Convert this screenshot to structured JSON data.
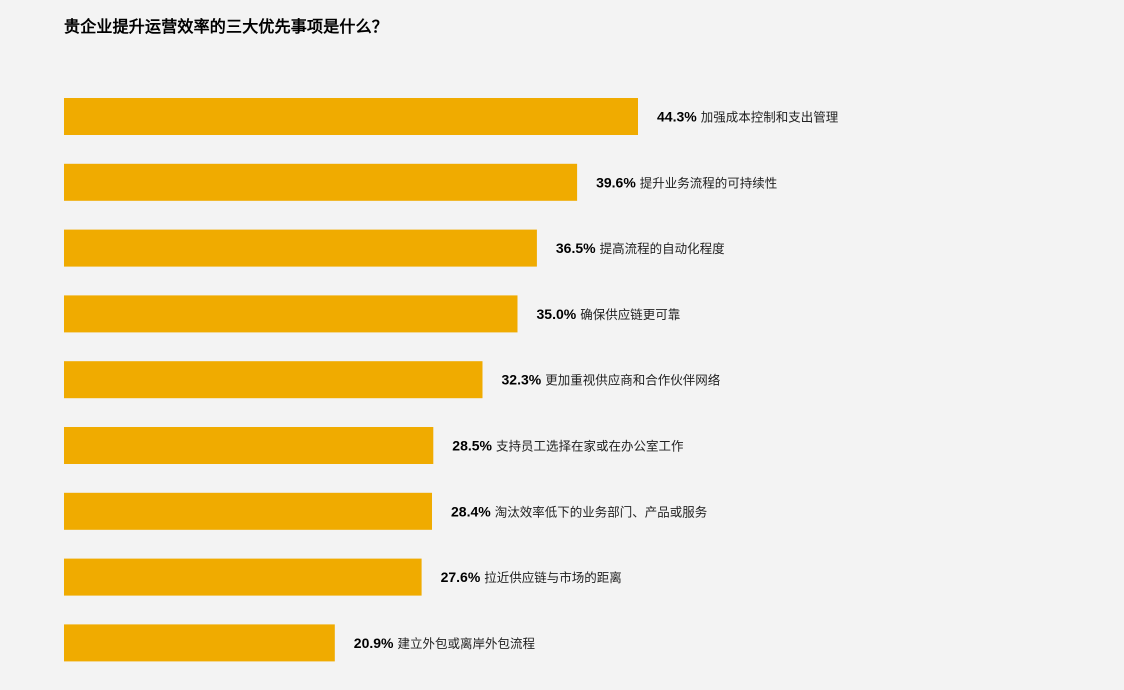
{
  "title": "贵企业提升运营效率的三大优先事项是什么？",
  "chart_data": {
    "type": "bar",
    "orientation": "horizontal",
    "title": "贵企业提升运营效率的三大优先事项是什么？",
    "xlabel": "",
    "ylabel": "",
    "value_suffix": "%",
    "xlim": [
      0,
      100
    ],
    "grid": false,
    "legend": "none",
    "bar_color": "#f0ab00",
    "categories": [
      "加强成本控制和支出管理",
      "提升业务流程的可持续性",
      "提高流程的自动化程度",
      "确保供应链更可靠",
      "更加重视供应商和合作伙伴网络",
      "支持员工选择在家或在办公室工作",
      "淘汰效率低下的业务部门、产品或服务",
      "拉近供应链与市场的距离",
      "建立外包或离岸外包流程"
    ],
    "values": [
      44.3,
      39.6,
      36.5,
      35.0,
      32.3,
      28.5,
      28.4,
      27.6,
      20.9
    ],
    "value_labels": [
      "44.3%",
      "39.6%",
      "36.5%",
      "35.0%",
      "32.3%",
      "28.5%",
      "28.4%",
      "27.6%",
      "20.9%"
    ]
  }
}
